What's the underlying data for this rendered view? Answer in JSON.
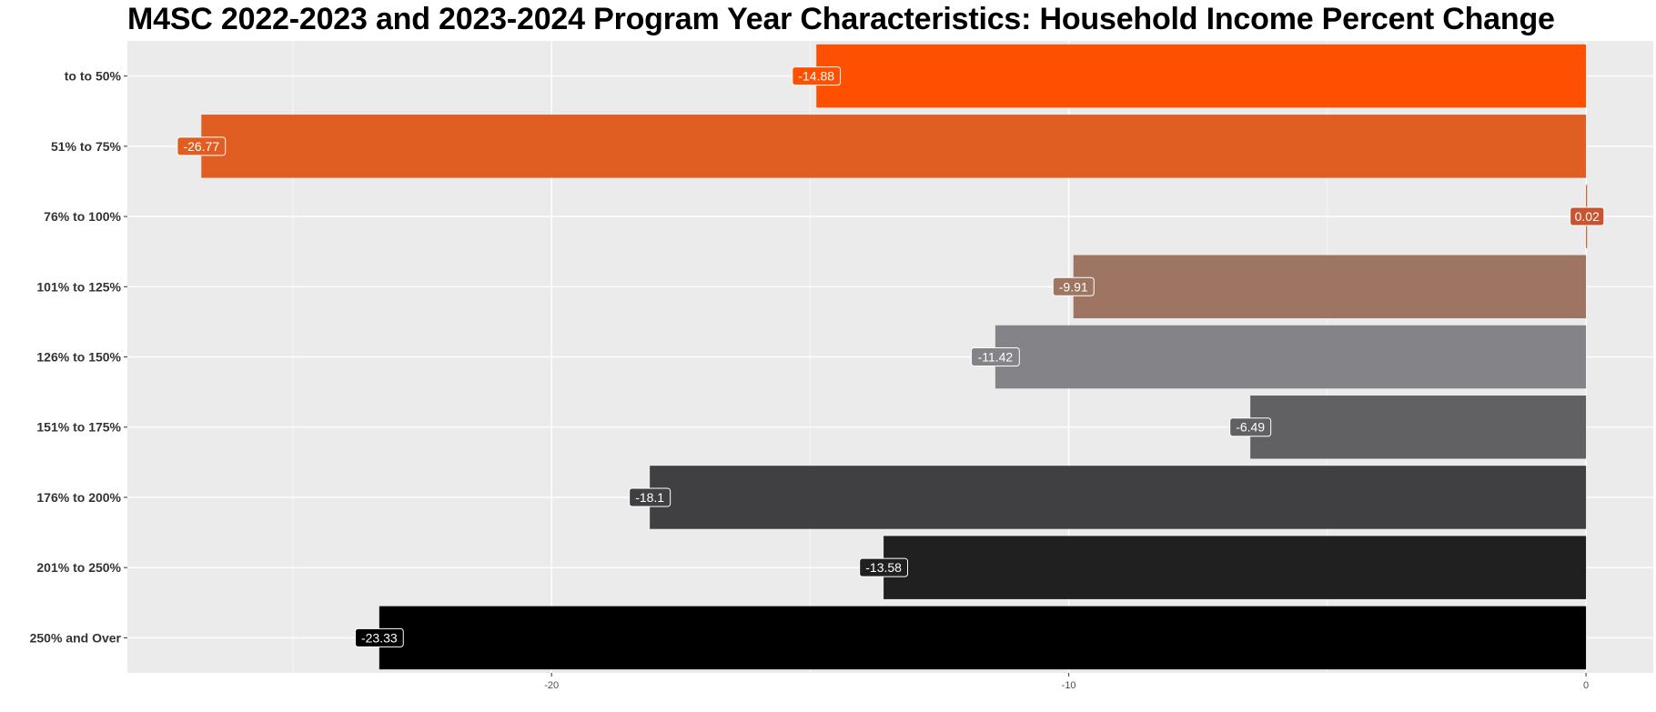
{
  "chart_data": {
    "type": "bar",
    "orientation": "horizontal",
    "title": "M4SC 2022-2023 and 2023-2024 Program Year Characteristics: Household Income Percent Change",
    "xlabel": "",
    "ylabel": "",
    "categories": [
      "to to 50%",
      "51% to 75%",
      "76% to 100%",
      "101% to 125%",
      "126% to 150%",
      "151% to 175%",
      "176% to 200%",
      "201% to 250%",
      "250% and Over"
    ],
    "values": [
      -14.88,
      -26.77,
      0.02,
      -9.91,
      -11.42,
      -6.49,
      -18.1,
      -13.58,
      -23.33
    ],
    "data_labels": [
      "-14.88",
      "-26.77",
      "0.02",
      "-9.91",
      "-11.42",
      "-6.49",
      "-18.1",
      "-13.58",
      "-23.33"
    ],
    "colors": [
      "#ff4f00",
      "#e05e22",
      "#c95530",
      "#9e7563",
      "#848488",
      "#616163",
      "#404042",
      "#202020",
      "#000000"
    ],
    "xlim": [
      -28.2,
      1.3
    ],
    "xticks": [
      -20,
      -10,
      0
    ],
    "xtick_labels": [
      "-20",
      "-10",
      "0"
    ],
    "grid": true,
    "panel_background": "#ebebeb",
    "legend": "none"
  }
}
